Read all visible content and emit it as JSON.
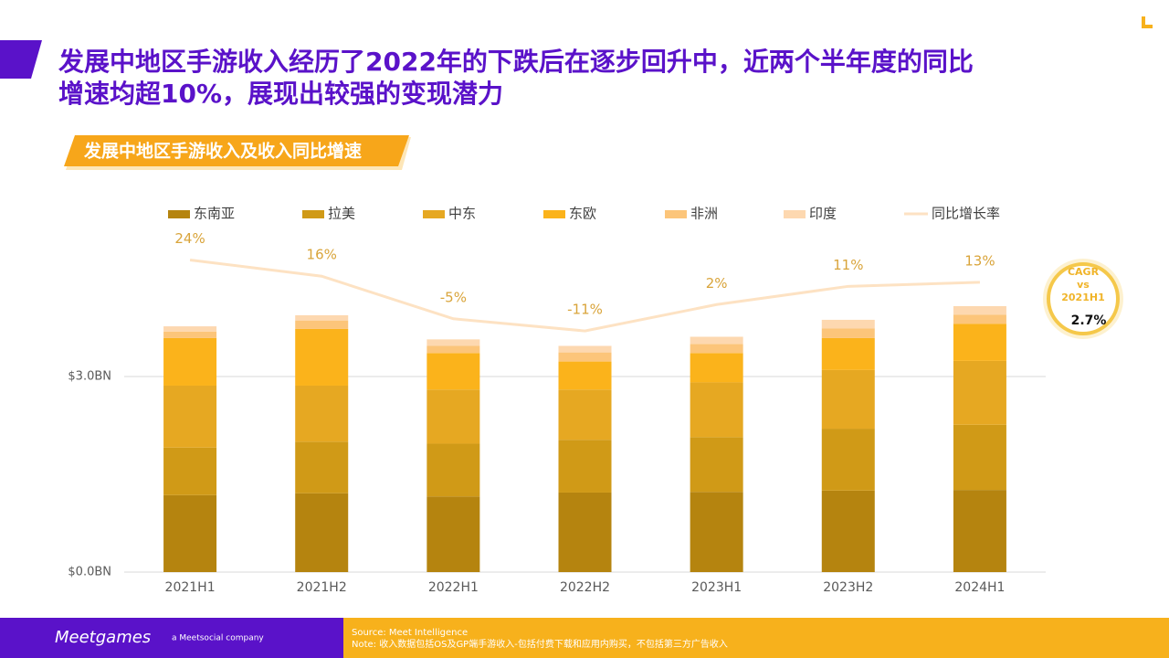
{
  "header": {
    "title": [
      "发展中地区手游收入经历了2022年的下跌后在逐步回升中，近两个半年度的同比",
      "增速均超10%，展现出较强的变现潜力"
    ],
    "section": "发展中地区手游收入及收入同比增速"
  },
  "chart_data": {
    "type": "stacked_bar",
    "categories": [
      "2021H1",
      "2021H2",
      "2022H1",
      "2022H2",
      "2023H1",
      "2023H2",
      "2024H1"
    ],
    "series": [
      {
        "name": "东南亚",
        "color": "#b5840f",
        "values": [
          1.18,
          1.21,
          1.16,
          1.22,
          1.23,
          1.25,
          1.26
        ]
      },
      {
        "name": "拉美",
        "color": "#d09a17",
        "values": [
          0.73,
          0.79,
          0.81,
          0.81,
          0.84,
          0.95,
          1.0
        ]
      },
      {
        "name": "中东",
        "color": "#e6a822",
        "values": [
          0.95,
          0.86,
          0.83,
          0.77,
          0.84,
          0.9,
          0.98
        ]
      },
      {
        "name": "东欧",
        "color": "#fbb31b",
        "values": [
          0.73,
          0.87,
          0.56,
          0.43,
          0.45,
          0.49,
          0.57
        ]
      },
      {
        "name": "非洲",
        "color": "#fcc57a",
        "values": [
          0.1,
          0.13,
          0.11,
          0.14,
          0.14,
          0.15,
          0.14
        ]
      },
      {
        "name": "印度",
        "color": "#fdd8b0",
        "values": [
          0.08,
          0.08,
          0.1,
          0.1,
          0.11,
          0.13,
          0.13
        ]
      },
      {
        "name": "同比增长率",
        "color": "#fde2c3",
        "type": "line",
        "axis": "y2",
        "values": [
          24,
          16,
          -5,
          -11,
          2,
          11,
          13
        ],
        "value_labels": [
          "24%",
          "16%",
          "-5%",
          "-11%",
          "2%",
          "11%",
          "13%"
        ]
      }
    ],
    "ylim": [
      0,
      6
    ],
    "yticks": [
      {
        "value": 0,
        "label": "$0.0BN"
      },
      {
        "value": 3,
        "label": "$3.0BN"
      }
    ],
    "y2lim": [
      -130,
      63
    ],
    "grid": true,
    "legend": "top",
    "cagr": {
      "title": "CAGR",
      "sub": "vs",
      "base": "2021H1",
      "value": "2.7%"
    }
  },
  "footer": {
    "logo": "Meetgames",
    "tagline": "a Meetsocial company",
    "source": "Source: Meet Intelligence",
    "note": "Note: 收入数据包括OS及GP端手游收入-包括付费下载和应用内购买，不包括第三方广告收入"
  }
}
